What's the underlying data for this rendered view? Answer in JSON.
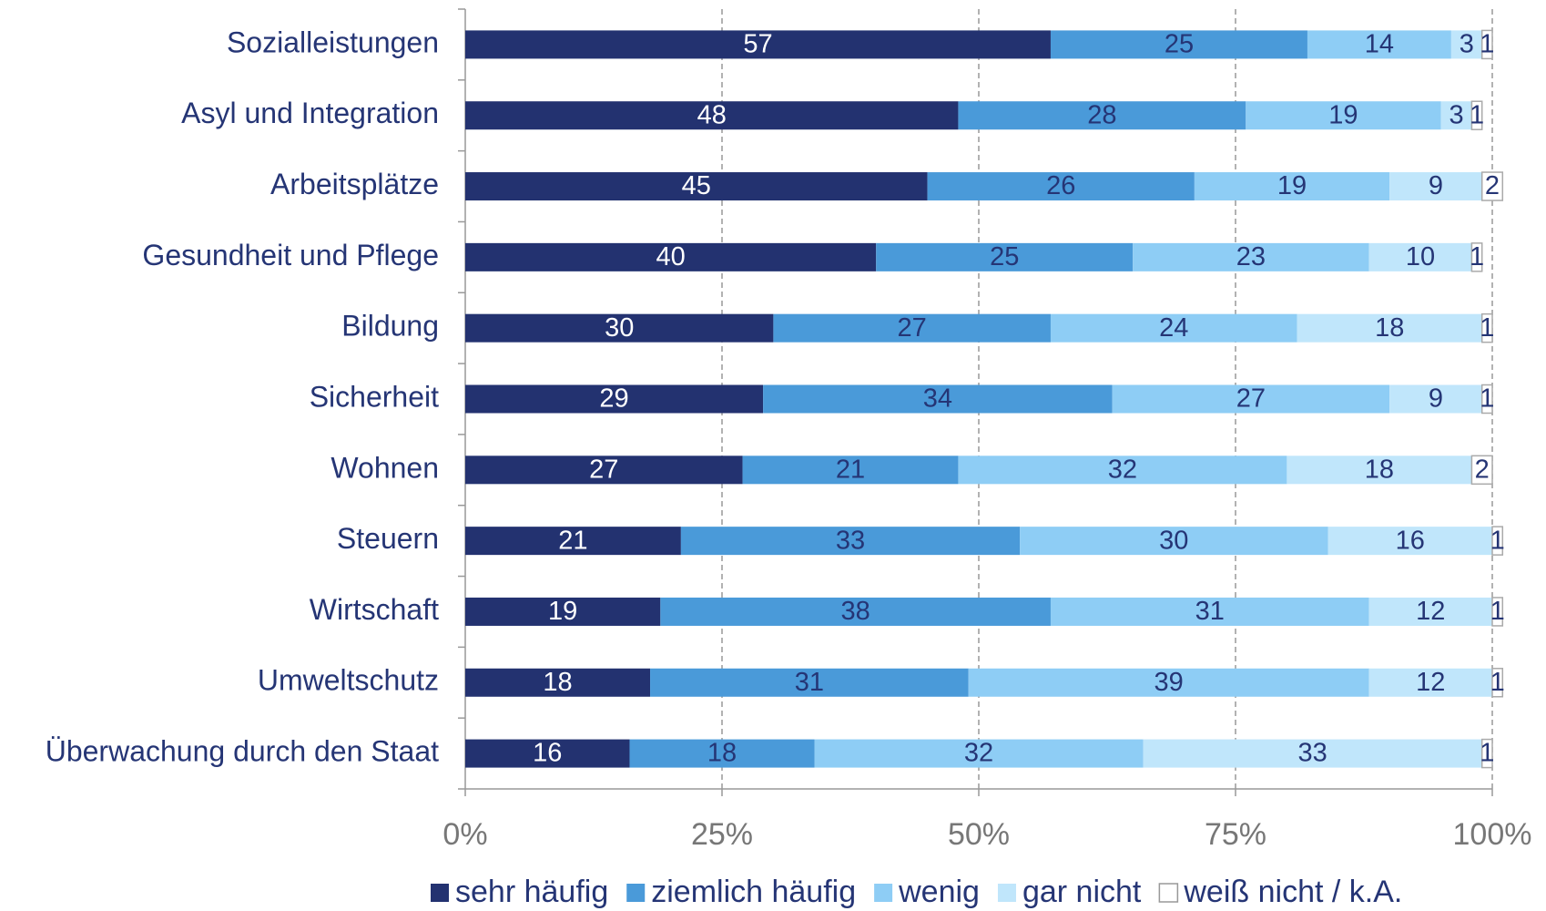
{
  "chart_data": {
    "type": "stacked-bar-horizontal",
    "categories": [
      "Sozialleistungen",
      "Asyl und Integration",
      "Arbeitsplätze",
      "Gesundheit und Pflege",
      "Bildung",
      "Sicherheit",
      "Wohnen",
      "Steuern",
      "Wirtschaft",
      "Umweltschutz",
      "Überwachung durch den Staat"
    ],
    "series": [
      {
        "name": "sehr häufig",
        "color": "#233270",
        "values": [
          57,
          48,
          45,
          40,
          30,
          29,
          27,
          21,
          19,
          18,
          16
        ]
      },
      {
        "name": "ziemlich häufig",
        "color": "#4a9ad9",
        "values": [
          25,
          28,
          26,
          25,
          27,
          34,
          21,
          33,
          38,
          31,
          18
        ]
      },
      {
        "name": "wenig",
        "color": "#8ecdf5",
        "values": [
          14,
          19,
          19,
          23,
          24,
          27,
          32,
          30,
          31,
          39,
          32
        ]
      },
      {
        "name": "gar nicht",
        "color": "#c0e6fb",
        "values": [
          3,
          3,
          9,
          10,
          18,
          9,
          18,
          16,
          12,
          12,
          33
        ]
      },
      {
        "name": "weiß nicht / k.A.",
        "color": "#ffffff",
        "values": [
          1,
          1,
          2,
          1,
          1,
          1,
          2,
          1,
          1,
          1,
          1
        ]
      }
    ],
    "xlim": [
      0,
      100
    ],
    "xticks": [
      {
        "value": 0,
        "label": "0%"
      },
      {
        "value": 25,
        "label": "25%"
      },
      {
        "value": 50,
        "label": "50%"
      },
      {
        "value": 75,
        "label": "75%"
      },
      {
        "value": 100,
        "label": "100%"
      }
    ],
    "grid": true,
    "legend": "bottom"
  }
}
